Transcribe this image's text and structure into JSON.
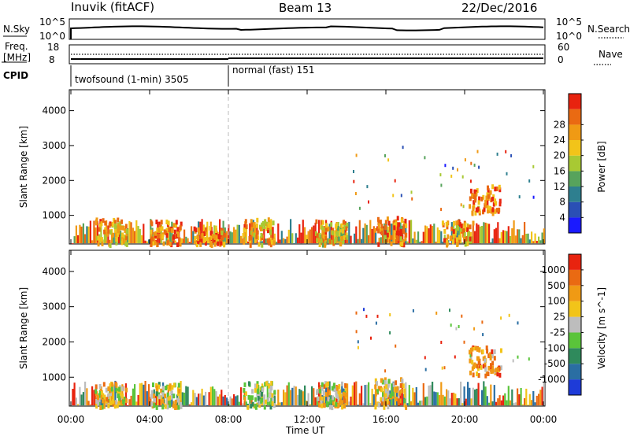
{
  "header": {
    "station": "Inuvik (fitACF)",
    "beam": "Beam 13",
    "date": "22/Dec/2016"
  },
  "nsky": {
    "left_label": "N.Sky",
    "left_ticks": [
      "10^5",
      "10^0"
    ],
    "right_label": "N.Search",
    "right_ticks": [
      "10^5",
      "10^0"
    ]
  },
  "freq": {
    "left_label_line1": "Freq.",
    "left_label_line2": "[MHz]",
    "left_ticks": [
      "18",
      "8"
    ],
    "right_label": "Nave",
    "right_ticks": [
      "60",
      "0"
    ]
  },
  "cpid": {
    "label": "CPID",
    "seg1": "twofsound (1-min) 3505",
    "seg2": "normal (fast) 151"
  },
  "chart_data": [
    {
      "type": "heatmap",
      "title": "",
      "xlabel": "Time UT",
      "ylabel": "Slant Range [km]",
      "colorbar_label": "Power [dB]",
      "x_tick_labels": [
        "00:00",
        "04:00",
        "08:00",
        "12:00",
        "16:00",
        "20:00",
        "00:00"
      ],
      "x_range_hours": [
        0,
        24
      ],
      "ylim": [
        180,
        4600
      ],
      "y_ticks": [
        1000,
        2000,
        3000,
        4000
      ],
      "colorbar_ticks": [
        "4",
        "8",
        "12",
        "16",
        "20",
        "24",
        "28"
      ],
      "colors": [
        "#1a1aff",
        "#2a4fb5",
        "#2e7f8f",
        "#57a35c",
        "#a8c933",
        "#f2c419",
        "#f09a14",
        "#ea6a12",
        "#e8230f"
      ],
      "clusters": [
        {
          "t": 2.0,
          "r0": 200,
          "r1": 950,
          "level": 0.7
        },
        {
          "t": 4.8,
          "r0": 200,
          "r1": 900,
          "level": 0.85
        },
        {
          "t": 7.0,
          "r0": 200,
          "r1": 700,
          "level": 0.8
        },
        {
          "t": 9.5,
          "r0": 200,
          "r1": 950,
          "level": 0.7
        },
        {
          "t": 13.2,
          "r0": 200,
          "r1": 900,
          "level": 0.65
        },
        {
          "t": 16.2,
          "r0": 200,
          "r1": 1000,
          "level": 0.8
        },
        {
          "t": 19.6,
          "r0": 200,
          "r1": 900,
          "level": 0.75
        },
        {
          "t": 21.0,
          "r0": 1100,
          "r1": 1900,
          "level": 0.8
        }
      ]
    },
    {
      "type": "heatmap",
      "title": "",
      "xlabel": "Time UT",
      "ylabel": "Slant Range [km]",
      "colorbar_label": "Velocity [m s^-1]",
      "x_tick_labels": [
        "00:00",
        "04:00",
        "08:00",
        "12:00",
        "16:00",
        "20:00",
        "00:00"
      ],
      "x_range_hours": [
        0,
        24
      ],
      "ylim": [
        180,
        4600
      ],
      "y_ticks": [
        1000,
        2000,
        3000,
        4000
      ],
      "colorbar_ticks": [
        "1000",
        "500",
        "100",
        "25",
        "-25",
        "-100",
        "-500",
        "-1000"
      ],
      "colors": [
        "#1e3bd8",
        "#2a6ea3",
        "#2f8a5c",
        "#5ac43a",
        "#bdbdbd",
        "#f2c419",
        "#f09a14",
        "#ea6a12",
        "#e8230f"
      ],
      "clusters": [
        {
          "t": 2.0,
          "r0": 200,
          "r1": 900,
          "level": 0.6
        },
        {
          "t": 4.8,
          "r0": 200,
          "r1": 900,
          "level": 0.55
        },
        {
          "t": 9.5,
          "r0": 200,
          "r1": 900,
          "level": 0.45
        },
        {
          "t": 13.2,
          "r0": 200,
          "r1": 900,
          "level": 0.6
        },
        {
          "t": 16.2,
          "r0": 200,
          "r1": 1000,
          "level": 0.65
        },
        {
          "t": 21.0,
          "r0": 1100,
          "r1": 1900,
          "level": 0.75
        }
      ]
    }
  ]
}
